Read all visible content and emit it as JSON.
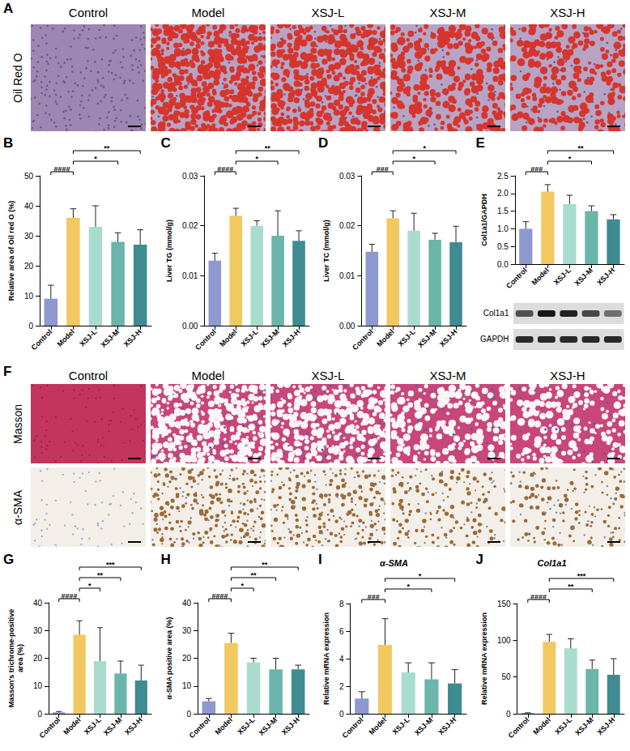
{
  "image_panels": [
    {
      "panel": "A",
      "columns": [
        "Control",
        "Model",
        "XSJ-L",
        "XSJ-M",
        "XSJ-H"
      ],
      "rows": [
        "Oil Red O"
      ]
    },
    {
      "panel": "F",
      "columns": [
        "Control",
        "Model",
        "XSJ-L",
        "XSJ-M",
        "XSJ-H"
      ],
      "rows": [
        "Masson",
        "α-SMA"
      ]
    }
  ],
  "blot": {
    "panel": "E",
    "bands": [
      "Col1a1",
      "GAPDH"
    ]
  },
  "chart_data": [
    {
      "panel": "B",
      "type": "bar",
      "y_label": "Relative area of Oil red O (%)",
      "categories": [
        "Control",
        "Model",
        "XSJ-L",
        "XSJ-M",
        "XSJ-H"
      ],
      "values": [
        9,
        36,
        33,
        28,
        27
      ],
      "errors": [
        4.5,
        3,
        7,
        3,
        5
      ],
      "colors": [
        "#8d99cf",
        "#f2c861",
        "#a9dccf",
        "#6bb5aa",
        "#3f8b92"
      ],
      "ylim": [
        0,
        50
      ],
      "yticks": [
        0,
        10,
        20,
        30,
        40,
        50
      ],
      "grid": false,
      "comparisons": [
        {
          "from": "Control",
          "to": "Model",
          "label": "####"
        },
        {
          "from": "Model",
          "to": "XSJ-M",
          "label": "*"
        },
        {
          "from": "Model",
          "to": "XSJ-H",
          "label": "**"
        }
      ]
    },
    {
      "panel": "C",
      "type": "bar",
      "y_label": "Liver TG (mmol/g)",
      "categories": [
        "Control",
        "Model",
        "XSJ-L",
        "XSJ-M",
        "XSJ-H"
      ],
      "values": [
        0.013,
        0.022,
        0.02,
        0.018,
        0.017
      ],
      "errors": [
        0.0015,
        0.0015,
        0.001,
        0.005,
        0.002
      ],
      "colors": [
        "#8d99cf",
        "#f2c861",
        "#a9dccf",
        "#6bb5aa",
        "#3f8b92"
      ],
      "ylim": [
        0,
        0.03
      ],
      "yticks": [
        {
          "value": 0,
          "label": "0.00"
        },
        0.01,
        0.02,
        0.03
      ],
      "grid": false,
      "comparisons": [
        {
          "from": "Control",
          "to": "Model",
          "label": "####"
        },
        {
          "from": "Model",
          "to": "XSJ-M",
          "label": "*"
        },
        {
          "from": "Model",
          "to": "XSJ-H",
          "label": "**"
        }
      ]
    },
    {
      "panel": "D",
      "type": "bar",
      "y_label": "Liver TC (mmol/g)",
      "categories": [
        "Control",
        "Model",
        "XSJ-L",
        "XSJ-M",
        "XSJ-H"
      ],
      "values": [
        0.0148,
        0.0215,
        0.019,
        0.0172,
        0.0167
      ],
      "errors": [
        0.0015,
        0.0015,
        0.0035,
        0.0013,
        0.0032
      ],
      "colors": [
        "#8d99cf",
        "#f2c861",
        "#a9dccf",
        "#6bb5aa",
        "#3f8b92"
      ],
      "ylim": [
        0,
        0.03
      ],
      "yticks": [
        {
          "value": 0,
          "label": "0.00"
        },
        0.01,
        0.02,
        0.03
      ],
      "grid": false,
      "comparisons": [
        {
          "from": "Control",
          "to": "Model",
          "label": "###"
        },
        {
          "from": "Model",
          "to": "XSJ-M",
          "label": "*"
        },
        {
          "from": "Model",
          "to": "XSJ-H",
          "label": "*"
        }
      ]
    },
    {
      "panel": "E",
      "type": "bar",
      "y_label": "Col1a1/GAPDH",
      "categories": [
        "Control",
        "Model",
        "XSJ-L",
        "XSJ-M",
        "XSJ-H"
      ],
      "values": [
        1.0,
        2.05,
        1.7,
        1.5,
        1.27
      ],
      "errors": [
        0.2,
        0.2,
        0.25,
        0.15,
        0.13
      ],
      "colors": [
        "#8d99cf",
        "#f2c861",
        "#a9dccf",
        "#6bb5aa",
        "#3f8b92"
      ],
      "ylim": [
        0,
        2.5
      ],
      "yticks": [
        {
          "value": 0,
          "label": "0.0"
        },
        0.5,
        {
          "value": 1,
          "label": "1.0"
        },
        1.5,
        {
          "value": 2,
          "label": "2.0"
        },
        2.5
      ],
      "grid": false,
      "comparisons": [
        {
          "from": "Control",
          "to": "Model",
          "label": "###"
        },
        {
          "from": "Model",
          "to": "XSJ-M",
          "label": "*"
        },
        {
          "from": "Model",
          "to": "XSJ-H",
          "label": "**"
        }
      ]
    },
    {
      "panel": "G",
      "type": "bar",
      "y_label": "Masson's trichrome-positive area (%)",
      "categories": [
        "Control",
        "Model",
        "XSJ-L",
        "XSJ-M",
        "XSJ-H"
      ],
      "values": [
        0.5,
        28.5,
        19,
        14.5,
        12
      ],
      "errors": [
        0.3,
        5,
        12,
        4.5,
        5.5
      ],
      "colors": [
        "#8d99cf",
        "#f2c861",
        "#a9dccf",
        "#6bb5aa",
        "#3f8b92"
      ],
      "ylim": [
        0,
        40
      ],
      "yticks": [
        0,
        10,
        20,
        30,
        40
      ],
      "grid": false,
      "comparisons": [
        {
          "from": "Control",
          "to": "Model",
          "label": "####"
        },
        {
          "from": "Model",
          "to": "XSJ-L",
          "label": "*"
        },
        {
          "from": "Model",
          "to": "XSJ-M",
          "label": "**"
        },
        {
          "from": "Model",
          "to": "XSJ-H",
          "label": "***"
        }
      ]
    },
    {
      "panel": "H",
      "type": "bar",
      "y_label": "α-SMA positive area (%)",
      "categories": [
        "Control",
        "Model",
        "XSJ-L",
        "XSJ-M",
        "XSJ-H"
      ],
      "values": [
        4.5,
        25.5,
        18.5,
        16,
        16
      ],
      "errors": [
        1,
        3.5,
        1.5,
        4,
        1.5
      ],
      "colors": [
        "#8d99cf",
        "#f2c861",
        "#a9dccf",
        "#6bb5aa",
        "#3f8b92"
      ],
      "ylim": [
        0,
        40
      ],
      "yticks": [
        0,
        10,
        20,
        30,
        40
      ],
      "grid": false,
      "comparisons": [
        {
          "from": "Control",
          "to": "Model",
          "label": "####"
        },
        {
          "from": "Model",
          "to": "XSJ-L",
          "label": "*"
        },
        {
          "from": "Model",
          "to": "XSJ-M",
          "label": "**"
        },
        {
          "from": "Model",
          "to": "XSJ-H",
          "label": "**"
        }
      ]
    },
    {
      "panel": "I",
      "type": "bar",
      "title": "α-SMA",
      "y_label": "Relative mRNA expression",
      "categories": [
        "Control",
        "Model",
        "XSJ-L",
        "XSJ-M",
        "XSJ-H"
      ],
      "values": [
        1.1,
        5,
        3,
        2.5,
        2.2
      ],
      "errors": [
        0.5,
        1.9,
        0.7,
        1.2,
        1
      ],
      "colors": [
        "#8d99cf",
        "#f2c861",
        "#a9dccf",
        "#6bb5aa",
        "#3f8b92"
      ],
      "ylim": [
        0,
        8
      ],
      "yticks": [
        0,
        2,
        4,
        6,
        8
      ],
      "grid": false,
      "comparisons": [
        {
          "from": "Control",
          "to": "Model",
          "label": "###"
        },
        {
          "from": "Model",
          "to": "XSJ-M",
          "label": "*"
        },
        {
          "from": "Model",
          "to": "XSJ-H",
          "label": "*"
        }
      ]
    },
    {
      "panel": "J",
      "type": "bar",
      "title": "Col1a1",
      "y_label": "Relative mRNA expression",
      "categories": [
        "Control",
        "Model",
        "XSJ-L",
        "XSJ-M",
        "XSJ-H"
      ],
      "values": [
        1,
        98,
        89,
        61,
        53
      ],
      "errors": [
        0.3,
        10,
        13,
        12,
        22
      ],
      "colors": [
        "#8d99cf",
        "#f2c861",
        "#a9dccf",
        "#6bb5aa",
        "#3f8b92"
      ],
      "ylim": [
        0,
        150
      ],
      "yticks": [
        0,
        50,
        100,
        150
      ],
      "grid": false,
      "comparisons": [
        {
          "from": "Control",
          "to": "Model",
          "label": "####"
        },
        {
          "from": "Model",
          "to": "XSJ-M",
          "label": "**"
        },
        {
          "from": "Model",
          "to": "XSJ-H",
          "label": "***"
        }
      ]
    }
  ]
}
